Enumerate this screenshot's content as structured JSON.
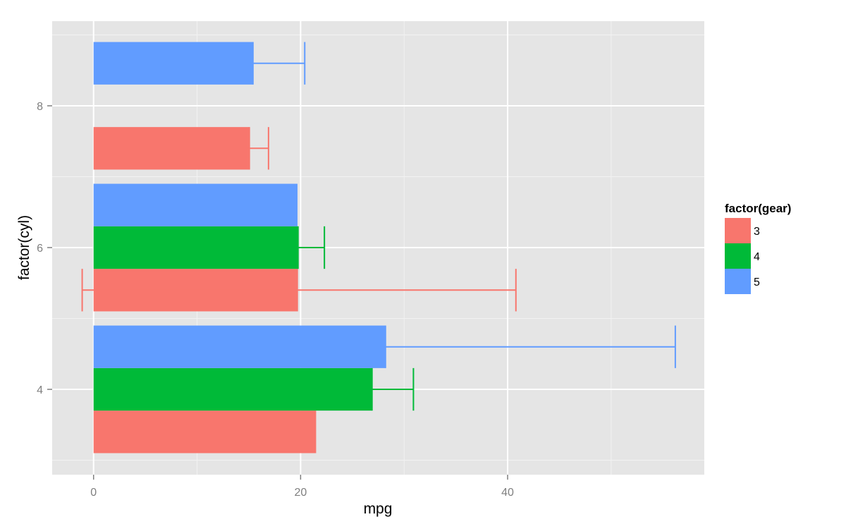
{
  "chart_data": {
    "type": "bar",
    "orientation": "horizontal",
    "grouped": true,
    "categories": [
      "4",
      "6",
      "8"
    ],
    "xlabel": "mpg",
    "ylabel": "factor(cyl)",
    "xlim": [
      -4,
      59
    ],
    "x_ticks": [
      0,
      20,
      40
    ],
    "grid": true,
    "background": "#e5e5e5",
    "legend": {
      "title": "factor(gear)",
      "position": "right"
    },
    "series": [
      {
        "name": "3",
        "color": "#f8766d",
        "values": [
          21.5,
          19.75,
          15.05
        ],
        "error": [
          null,
          {
            "low": -1.1,
            "high": 40.8
          },
          {
            "low": 15.05,
            "high": 16.9
          }
        ]
      },
      {
        "name": "4",
        "color": "#00ba38",
        "values": [
          26.9,
          19.75,
          null
        ],
        "error": [
          {
            "low": 26.9,
            "high": 30.9
          },
          {
            "low": 19.75,
            "high": 22.3
          },
          null
        ]
      },
      {
        "name": "5",
        "color": "#619cff",
        "values": [
          28.2,
          19.7,
          15.4
        ],
        "error": [
          {
            "low": 28.2,
            "high": 56.2
          },
          null,
          {
            "low": 15.4,
            "high": 20.4
          }
        ]
      }
    ]
  }
}
